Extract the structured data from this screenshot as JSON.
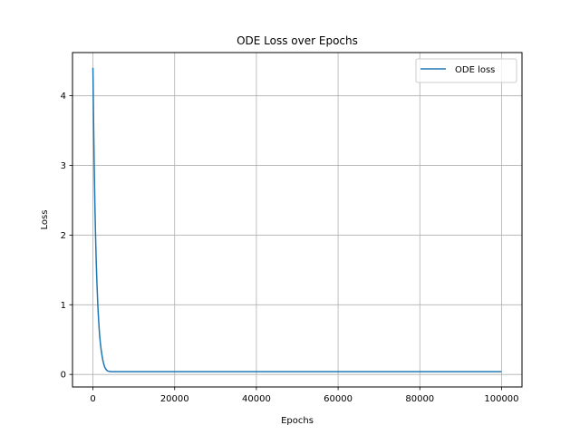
{
  "chart_data": {
    "type": "line",
    "title": "ODE Loss over Epochs",
    "xlabel": "Epochs",
    "ylabel": "Loss",
    "xlim": [
      -5000,
      105000
    ],
    "ylim": [
      -0.18,
      4.62
    ],
    "xticks": [
      0,
      20000,
      40000,
      60000,
      80000,
      100000
    ],
    "xtick_labels": [
      "0",
      "20000",
      "40000",
      "60000",
      "80000",
      "100000"
    ],
    "yticks": [
      0,
      1,
      2,
      3,
      4
    ],
    "ytick_labels": [
      "0",
      "1",
      "2",
      "3",
      "4"
    ],
    "grid": true,
    "legend_position": "upper right",
    "series": [
      {
        "name": "ODE loss",
        "color": "#1f77b4",
        "x": [
          0,
          100,
          200,
          300,
          400,
          500,
          600,
          700,
          800,
          900,
          1000,
          1200,
          1400,
          1600,
          1800,
          2000,
          2200,
          2400,
          2600,
          2800,
          3000,
          3300,
          3600,
          4000,
          4500,
          5000,
          6000,
          8000,
          10000,
          20000,
          30000,
          40000,
          50000,
          60000,
          70000,
          80000,
          90000,
          100000
        ],
        "y": [
          4.4,
          3.9,
          3.45,
          3.05,
          2.7,
          2.38,
          2.1,
          1.86,
          1.64,
          1.45,
          1.28,
          0.99,
          0.77,
          0.59,
          0.46,
          0.36,
          0.28,
          0.21,
          0.16,
          0.12,
          0.09,
          0.065,
          0.05,
          0.042,
          0.04,
          0.04,
          0.04,
          0.04,
          0.04,
          0.04,
          0.04,
          0.04,
          0.04,
          0.04,
          0.04,
          0.04,
          0.04,
          0.04
        ]
      }
    ]
  }
}
